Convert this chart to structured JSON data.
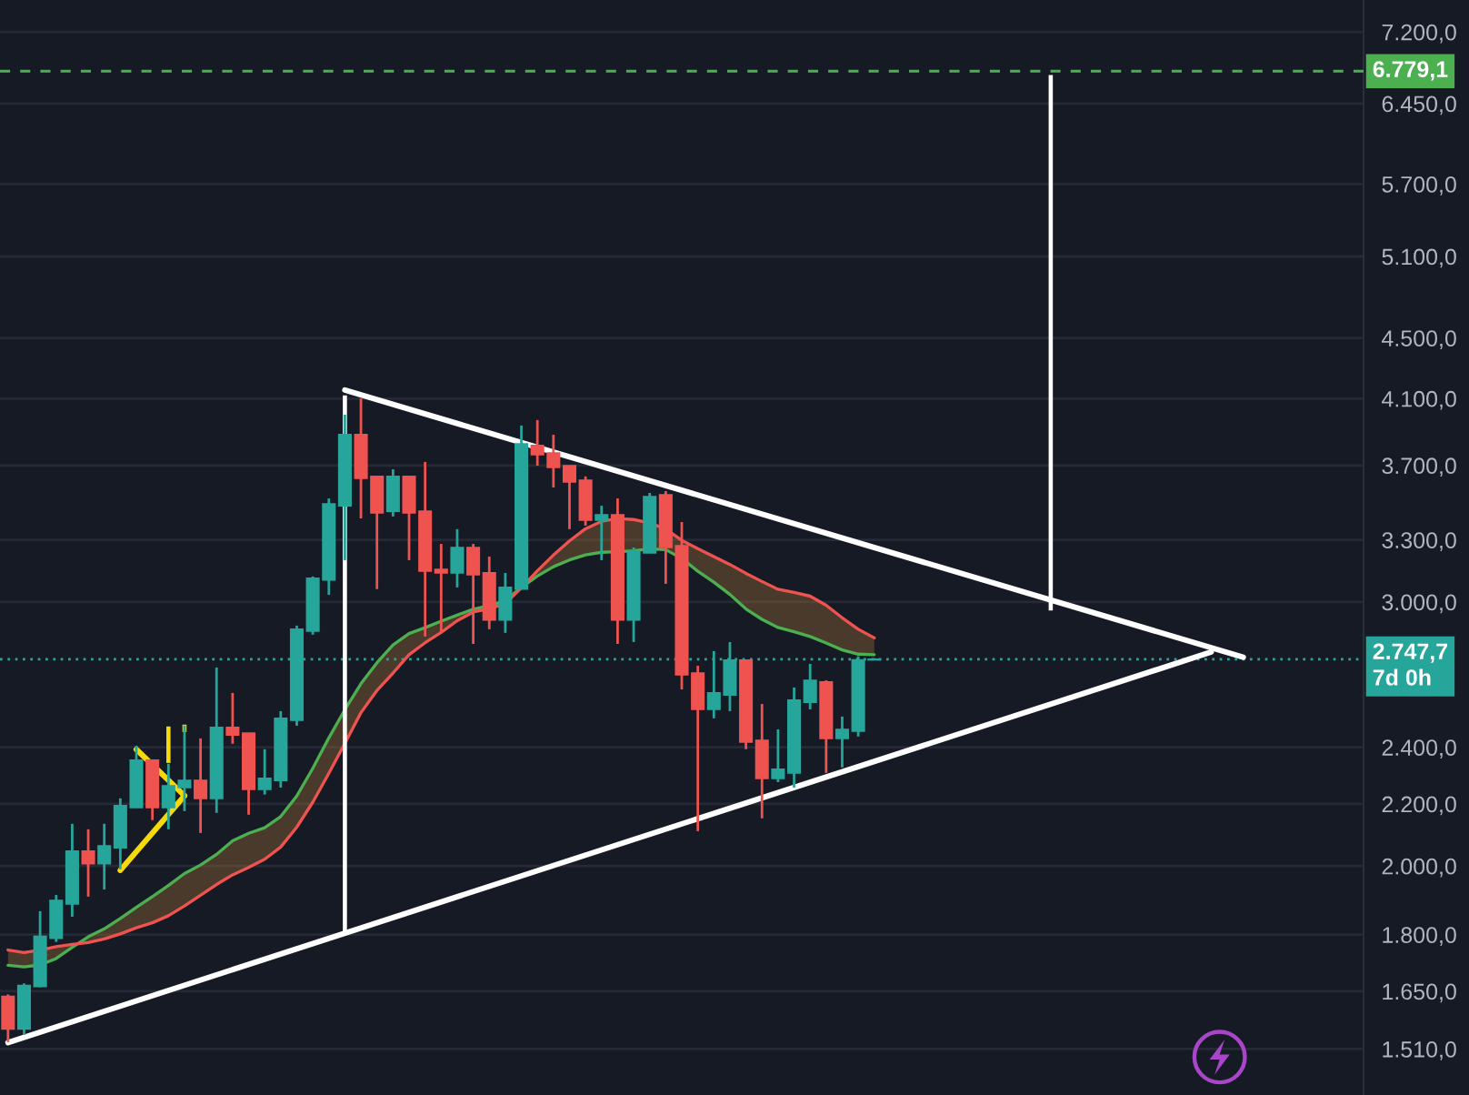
{
  "chart_data": {
    "type": "candlestick",
    "categories": [
      null,
      null,
      null,
      null,
      null,
      null,
      null,
      null,
      null,
      null,
      null,
      null,
      null,
      null,
      null,
      null,
      null,
      null,
      null,
      null,
      null,
      null,
      null,
      null,
      null,
      null,
      null,
      null,
      null,
      null,
      null,
      null,
      null,
      null,
      null,
      null,
      null,
      null,
      null,
      null,
      null,
      null,
      null,
      null,
      null,
      null,
      null,
      null,
      null,
      null,
      null,
      null,
      null,
      null,
      null,
      null,
      null,
      null,
      null,
      null,
      null,
      null,
      null,
      null,
      null,
      null,
      null,
      null,
      null,
      null,
      null,
      null,
      null,
      null,
      null,
      null,
      null,
      null,
      null,
      null,
      null,
      null,
      null,
      null,
      null
    ],
    "ohlc": [
      [
        1637,
        1642,
        1526,
        1557
      ],
      [
        1557,
        1670,
        1543,
        1665
      ],
      [
        1662,
        1866,
        1660,
        1795
      ],
      [
        1790,
        1913,
        1780,
        1897
      ],
      [
        1887,
        2134,
        1850,
        2046
      ],
      [
        2046,
        2116,
        1908,
        2007
      ],
      [
        2007,
        2134,
        1929,
        2063
      ],
      [
        2057,
        2219,
        1990,
        2194
      ],
      [
        2188,
        2406,
        2188,
        2353
      ],
      [
        2353,
        2353,
        2146,
        2188
      ],
      [
        2188,
        2340,
        2116,
        2262
      ],
      [
        2256,
        2481,
        2176,
        2281
      ],
      [
        2281,
        2433,
        2104,
        2219
      ],
      [
        2219,
        2713,
        2170,
        2474
      ],
      [
        2474,
        2609,
        2413,
        2446
      ],
      [
        2453,
        2453,
        2164,
        2250
      ],
      [
        2250,
        2393,
        2232,
        2288
      ],
      [
        2281,
        2537,
        2256,
        2509
      ],
      [
        2502,
        2893,
        2481,
        2877
      ],
      [
        2869,
        3120,
        2853,
        3111
      ],
      [
        3103,
        3517,
        3033,
        3488
      ],
      [
        3478,
        4000,
        3199,
        3879
      ],
      [
        3879,
        4101,
        3411,
        3627
      ],
      [
        3638,
        3638,
        3060,
        3440
      ],
      [
        3449,
        3678,
        3421,
        3638
      ],
      [
        3638,
        3638,
        3199,
        3440
      ],
      [
        3449,
        3720,
        2845,
        3146
      ],
      [
        3154,
        3280,
        2861,
        3137
      ],
      [
        3137,
        3355,
        3068,
        3262
      ],
      [
        3262,
        3280,
        2813,
        3128
      ],
      [
        3137,
        3217,
        2877,
        2918
      ],
      [
        2918,
        3137,
        2861,
        3068
      ],
      [
        3060,
        3934,
        3060,
        3825
      ],
      [
        3815,
        3967,
        3699,
        3762
      ],
      [
        3772,
        3879,
        3577,
        3689
      ],
      [
        3699,
        3699,
        3355,
        3607
      ],
      [
        3617,
        3638,
        3373,
        3402
      ],
      [
        3402,
        3478,
        3199,
        3430
      ],
      [
        3430,
        3517,
        2813,
        2918
      ],
      [
        2918,
        3262,
        2821,
        3244
      ],
      [
        3235,
        3547,
        3235,
        3527
      ],
      [
        3537,
        3557,
        3085,
        3262
      ],
      [
        3271,
        3392,
        2623,
        2683
      ],
      [
        2690,
        2720,
        2110,
        2544
      ],
      [
        2544,
        2782,
        2509,
        2609
      ],
      [
        2601,
        2821,
        2537,
        2744
      ],
      [
        2744,
        2744,
        2393,
        2419
      ],
      [
        2426,
        2565,
        2152,
        2288
      ],
      [
        2288,
        2467,
        2275,
        2320
      ],
      [
        2307,
        2631,
        2256,
        2580
      ],
      [
        2572,
        2728,
        2544,
        2660
      ],
      [
        2653,
        2660,
        2307,
        2433
      ],
      [
        2433,
        2516,
        2327,
        2467
      ],
      [
        2460,
        2760,
        2440,
        2745
      ],
      [
        2745,
        2752,
        2745,
        2747.7
      ],
      null,
      null,
      null,
      null,
      null,
      null,
      null,
      null,
      null,
      null,
      null,
      null,
      null,
      null,
      null,
      null,
      null,
      null,
      null,
      null,
      null,
      null,
      null,
      null,
      null,
      null,
      null,
      null,
      null,
      null
    ],
    "colors": [
      "#ef5350",
      "#26a69a",
      "#26a69a",
      "#26a69a",
      "#26a69a",
      "#ef5350",
      "#26a69a",
      "#26a69a",
      "#26a69a",
      "#ef5350",
      "#26a69a",
      "#26a69a",
      "#ef5350",
      "#26a69a",
      "#ef5350",
      "#ef5350",
      "#26a69a",
      "#26a69a",
      "#26a69a",
      "#26a69a",
      "#26a69a",
      "#26a69a",
      "#ef5350",
      "#ef5350",
      "#26a69a",
      "#ef5350",
      "#ef5350",
      "#ef5350",
      "#26a69a",
      "#ef5350",
      "#ef5350",
      "#26a69a",
      "#26a69a",
      "#ef5350",
      "#ef5350",
      "#ef5350",
      "#ef5350",
      "#26a69a",
      "#ef5350",
      "#26a69a",
      "#26a69a",
      "#ef5350",
      "#ef5350",
      "#ef5350",
      "#26a69a",
      "#26a69a",
      "#ef5350",
      "#ef5350",
      "#26a69a",
      "#26a69a",
      "#26a69a",
      "#ef5350",
      "#26a69a",
      "#26a69a",
      "#26a69a",
      null,
      null,
      null,
      null,
      null,
      null,
      null,
      null,
      null,
      null,
      null,
      null,
      null,
      null,
      null,
      null,
      null,
      null,
      null,
      null,
      null,
      null,
      null,
      null,
      null,
      null,
      null,
      null,
      null,
      null
    ],
    "series": [
      {
        "type": "line",
        "color": "#4caf50",
        "values": [
          1717,
          1713,
          1718,
          1735,
          1765,
          1794,
          1816,
          1845,
          1877,
          1908,
          1941,
          1977,
          2003,
          2036,
          2079,
          2103,
          2121,
          2158,
          2227,
          2324,
          2435,
          2543,
          2646,
          2733,
          2809,
          2858,
          2884,
          2913,
          2940,
          2967,
          2983,
          3007,
          3068,
          3122,
          3167,
          3200,
          3225,
          3238,
          3241,
          3245,
          3255,
          3251,
          3207,
          3145,
          3093,
          3035,
          2968,
          2921,
          2885,
          2866,
          2845,
          2817,
          2787,
          2769,
          2767,
          null,
          null,
          null,
          null,
          null,
          null,
          null,
          null,
          null,
          null,
          null,
          null,
          null,
          null,
          null,
          null,
          null,
          null,
          null,
          null,
          null,
          null,
          null,
          null,
          null,
          null,
          null,
          null,
          null,
          null
        ]
      },
      {
        "type": "line",
        "color": "#ef5350",
        "values": [
          1758,
          1751,
          1758,
          1767,
          1773,
          1778,
          1788,
          1802,
          1819,
          1833,
          1853,
          1881,
          1912,
          1944,
          1973,
          1996,
          2021,
          2059,
          2123,
          2206,
          2306,
          2415,
          2531,
          2619,
          2690,
          2767,
          2818,
          2863,
          2915,
          2954,
          2969,
          2993,
          3066,
          3147,
          3224,
          3295,
          3357,
          3396,
          3410,
          3405,
          3387,
          3356,
          3298,
          3256,
          3217,
          3178,
          3135,
          3096,
          3059,
          3044,
          3027,
          2985,
          2928,
          2877,
          2839,
          null,
          null,
          null,
          null,
          null,
          null,
          null,
          null,
          null,
          null,
          null,
          null,
          null,
          null,
          null,
          null,
          null,
          null,
          null,
          null,
          null,
          null,
          null,
          null,
          null,
          null,
          null,
          null,
          null,
          null
        ],
        "lower": [
          1717,
          1713,
          1718,
          1735,
          1765,
          1794,
          1816,
          1845,
          1877,
          1908,
          1941,
          1977,
          2003,
          2036,
          2079,
          2103,
          2121,
          2158,
          2227,
          2324,
          2435,
          2543,
          2646,
          2733,
          2809,
          2858,
          2884,
          2913,
          2940,
          2967,
          2983,
          3007,
          3068,
          3122,
          3167,
          3200,
          3225,
          3238,
          3241,
          3245,
          3255,
          3251,
          3207,
          3145,
          3093,
          3035,
          2968,
          2921,
          2885,
          2866,
          2845,
          2817,
          2787,
          2769,
          2767,
          null,
          null,
          null,
          null,
          null,
          null,
          null,
          null,
          null,
          null,
          null,
          null,
          null,
          null,
          null,
          null,
          null,
          null,
          null,
          null,
          null,
          null,
          null,
          null,
          null,
          null,
          null,
          null,
          null,
          null
        ],
        "upper": [
          1758,
          1751,
          1758,
          1767,
          1773,
          1778,
          1788,
          1802,
          1819,
          1833,
          1853,
          1881,
          1912,
          1944,
          1973,
          1996,
          2021,
          2059,
          2123,
          2206,
          2306,
          2415,
          2531,
          2619,
          2690,
          2767,
          2818,
          2863,
          2915,
          2954,
          2969,
          2993,
          3066,
          3147,
          3224,
          3295,
          3357,
          3396,
          3410,
          3405,
          3387,
          3356,
          3298,
          3256,
          3217,
          3178,
          3135,
          3096,
          3059,
          3044,
          3027,
          2985,
          2928,
          2877,
          2839,
          null,
          null,
          null,
          null,
          null,
          null,
          null,
          null,
          null,
          null,
          null,
          null,
          null,
          null,
          null,
          null,
          null,
          null,
          null,
          null,
          null,
          null,
          null,
          null,
          null,
          null,
          null,
          null,
          null,
          null
        ]
      },
      {
        "type": "line",
        "color": "#ffffff",
        "values": [
          null,
          null,
          null,
          null,
          null,
          null,
          null,
          null,
          null,
          null,
          null,
          null,
          null,
          null,
          null,
          null,
          null,
          null,
          null,
          null,
          null,
          4154,
          null,
          null,
          null,
          null,
          null,
          null,
          null,
          null,
          null,
          null,
          null,
          null,
          null,
          null,
          null,
          null,
          null,
          null,
          null,
          null,
          null,
          null,
          null,
          null,
          null,
          null,
          null,
          null,
          null,
          null,
          null,
          null,
          null,
          null,
          null,
          null,
          null,
          null,
          null,
          null,
          null,
          null,
          null,
          null,
          null,
          null,
          null,
          null,
          null,
          null,
          null,
          null,
          null,
          null,
          null,
          2756,
          null,
          null,
          null,
          null,
          null,
          null,
          null
        ]
      },
      {
        "type": "line",
        "color": "#ffffff",
        "values": [
          1525,
          null,
          null,
          null,
          null,
          null,
          null,
          null,
          null,
          null,
          null,
          null,
          null,
          null,
          null,
          null,
          null,
          null,
          null,
          null,
          null,
          null,
          null,
          null,
          null,
          null,
          null,
          null,
          null,
          null,
          null,
          null,
          null,
          null,
          null,
          null,
          null,
          null,
          null,
          null,
          null,
          null,
          null,
          null,
          null,
          null,
          null,
          null,
          null,
          null,
          null,
          null,
          null,
          null,
          null,
          null,
          null,
          null,
          null,
          null,
          null,
          null,
          null,
          null,
          null,
          null,
          null,
          null,
          null,
          null,
          null,
          null,
          null,
          null,
          null,
          2778,
          null,
          null,
          null,
          null,
          null,
          null,
          null,
          null,
          null
        ]
      },
      {
        "type": "bar",
        "color": "#ffffff",
        "values": [
          null,
          null,
          null,
          null,
          null,
          null,
          null,
          null,
          null,
          null,
          null,
          null,
          null,
          null,
          null,
          null,
          null,
          null,
          null,
          null,
          null,
          2313,
          null,
          null,
          null,
          null,
          null,
          null,
          null,
          null,
          null,
          null,
          null,
          null,
          null,
          null,
          null,
          null,
          null,
          null,
          null,
          null,
          null,
          null,
          null,
          null,
          null,
          null,
          null,
          null,
          null,
          null,
          null,
          null,
          null,
          null,
          null,
          null,
          null,
          null,
          null,
          null,
          null,
          null,
          null,
          3779,
          null,
          null,
          null,
          null,
          null,
          null,
          null,
          null,
          null,
          null,
          null,
          null,
          null,
          null,
          null,
          null,
          null,
          null,
          null
        ],
        "base": [
          null,
          null,
          null,
          null,
          null,
          null,
          null,
          null,
          null,
          null,
          null,
          null,
          null,
          null,
          null,
          null,
          null,
          null,
          null,
          null,
          null,
          1807,
          null,
          null,
          null,
          null,
          null,
          null,
          null,
          null,
          null,
          null,
          null,
          null,
          null,
          null,
          null,
          null,
          null,
          null,
          null,
          null,
          null,
          null,
          null,
          null,
          null,
          null,
          null,
          null,
          null,
          null,
          null,
          null,
          null,
          null,
          null,
          null,
          null,
          null,
          null,
          null,
          null,
          null,
          null,
          2961,
          null,
          null,
          null,
          null,
          null,
          null,
          null,
          null,
          null,
          null,
          null,
          null,
          null,
          null,
          null,
          null,
          null,
          null,
          null
        ]
      },
      {
        "type": "line",
        "color": "#f5d90a",
        "values": [
          null,
          null,
          null,
          null,
          null,
          null,
          null,
          1987,
          null,
          null,
          null,
          2228,
          null,
          null,
          null,
          null,
          null,
          null,
          null,
          null,
          null,
          null,
          null,
          null,
          null,
          null,
          null,
          null,
          null,
          null,
          null,
          null,
          null,
          null,
          null,
          null,
          null,
          null,
          null,
          null,
          null,
          null,
          null,
          null,
          null,
          null,
          null,
          null,
          null,
          null,
          null,
          null,
          null,
          null,
          null,
          null,
          null,
          null,
          null,
          null,
          null,
          null,
          null,
          null,
          null,
          null,
          null,
          null,
          null,
          null,
          null,
          null,
          null,
          null,
          null,
          null,
          null,
          null,
          null,
          null,
          null,
          null,
          null,
          null,
          null
        ]
      },
      {
        "type": "line",
        "color": "#f5d90a",
        "values": [
          null,
          null,
          null,
          null,
          null,
          null,
          null,
          null,
          2392,
          null,
          null,
          2228,
          null,
          null,
          null,
          null,
          null,
          null,
          null,
          null,
          null,
          null,
          null,
          null,
          null,
          null,
          null,
          null,
          null,
          null,
          null,
          null,
          null,
          null,
          null,
          null,
          null,
          null,
          null,
          null,
          null,
          null,
          null,
          null,
          null,
          null,
          null,
          null,
          null,
          null,
          null,
          null,
          null,
          null,
          null,
          null,
          null,
          null,
          null,
          null,
          null,
          null,
          null,
          null,
          null,
          null,
          null,
          null,
          null,
          null,
          null,
          null,
          null,
          null,
          null,
          null,
          null,
          null,
          null,
          null,
          null,
          null,
          null,
          null,
          null
        ]
      },
      {
        "type": "bar",
        "color": "#f5d90a",
        "values": [
          null,
          null,
          null,
          null,
          null,
          null,
          null,
          null,
          null,
          null,
          135,
          28,
          null,
          null,
          null,
          null,
          null,
          null,
          null,
          null,
          null,
          null,
          null,
          null,
          null,
          null,
          null,
          null,
          null,
          null,
          null,
          null,
          null,
          null,
          null,
          null,
          null,
          null,
          null,
          null,
          null,
          null,
          null,
          null,
          null,
          null,
          null,
          null,
          null,
          null,
          null,
          null,
          null,
          null,
          null,
          null,
          null,
          null,
          null,
          null,
          null,
          null,
          null,
          null,
          null,
          null,
          null,
          null,
          null,
          null,
          null,
          null,
          null,
          null,
          null,
          null,
          null,
          null,
          null,
          null,
          null,
          null,
          null,
          null,
          null
        ],
        "base": [
          null,
          null,
          null,
          null,
          null,
          null,
          null,
          null,
          null,
          null,
          2343,
          2457,
          null,
          null,
          null,
          null,
          null,
          null,
          null,
          null,
          null,
          null,
          null,
          null,
          null,
          null,
          null,
          null,
          null,
          null,
          null,
          null,
          null,
          null,
          null,
          null,
          null,
          null,
          null,
          null,
          null,
          null,
          null,
          null,
          null,
          null,
          null,
          null,
          null,
          null,
          null,
          null,
          null,
          null,
          null,
          null,
          null,
          null,
          null,
          null,
          null,
          null,
          null,
          null,
          null,
          null,
          null,
          null,
          null,
          null,
          null,
          null,
          null,
          null,
          null,
          null,
          null,
          null,
          null,
          null,
          null,
          null,
          null,
          null,
          null
        ]
      }
    ],
    "log": "y",
    "ylim": [
      1407,
      7562
    ],
    "yticks": [
      {
        "value": 1510,
        "label": "1.510,0"
      },
      {
        "value": 1650,
        "label": "1.650,0"
      },
      {
        "value": 1800,
        "label": "1.800,0"
      },
      {
        "value": 2000,
        "label": "2.000,0"
      },
      {
        "value": 2200,
        "label": "2.200,0"
      },
      {
        "value": 2400,
        "label": "2.400,0"
      },
      {
        "value": 3000,
        "label": "3.000,0"
      },
      {
        "value": 3300,
        "label": "3.300,0"
      },
      {
        "value": 3700,
        "label": "3.700,0"
      },
      {
        "value": 4100,
        "label": "4.100,0"
      },
      {
        "value": 4500,
        "label": "4.500,0"
      },
      {
        "value": 5100,
        "label": "5.100,0"
      },
      {
        "value": 5700,
        "label": "5.700,0"
      },
      {
        "value": 6450,
        "label": "6.450,0"
      },
      {
        "value": 7200,
        "label": "7.200,0"
      }
    ],
    "ref_lines": [
      {
        "axis": "y",
        "value": 6779.1,
        "label": "6.779,1",
        "color": "#4caf50",
        "line_style": "dashed"
      },
      {
        "axis": "y",
        "value": 2747.7,
        "label": "2.747,7\n7d 0h",
        "color": "#26a69a",
        "line_style": "dotted"
      }
    ],
    "grid": "y",
    "tick_labels": "y"
  }
}
